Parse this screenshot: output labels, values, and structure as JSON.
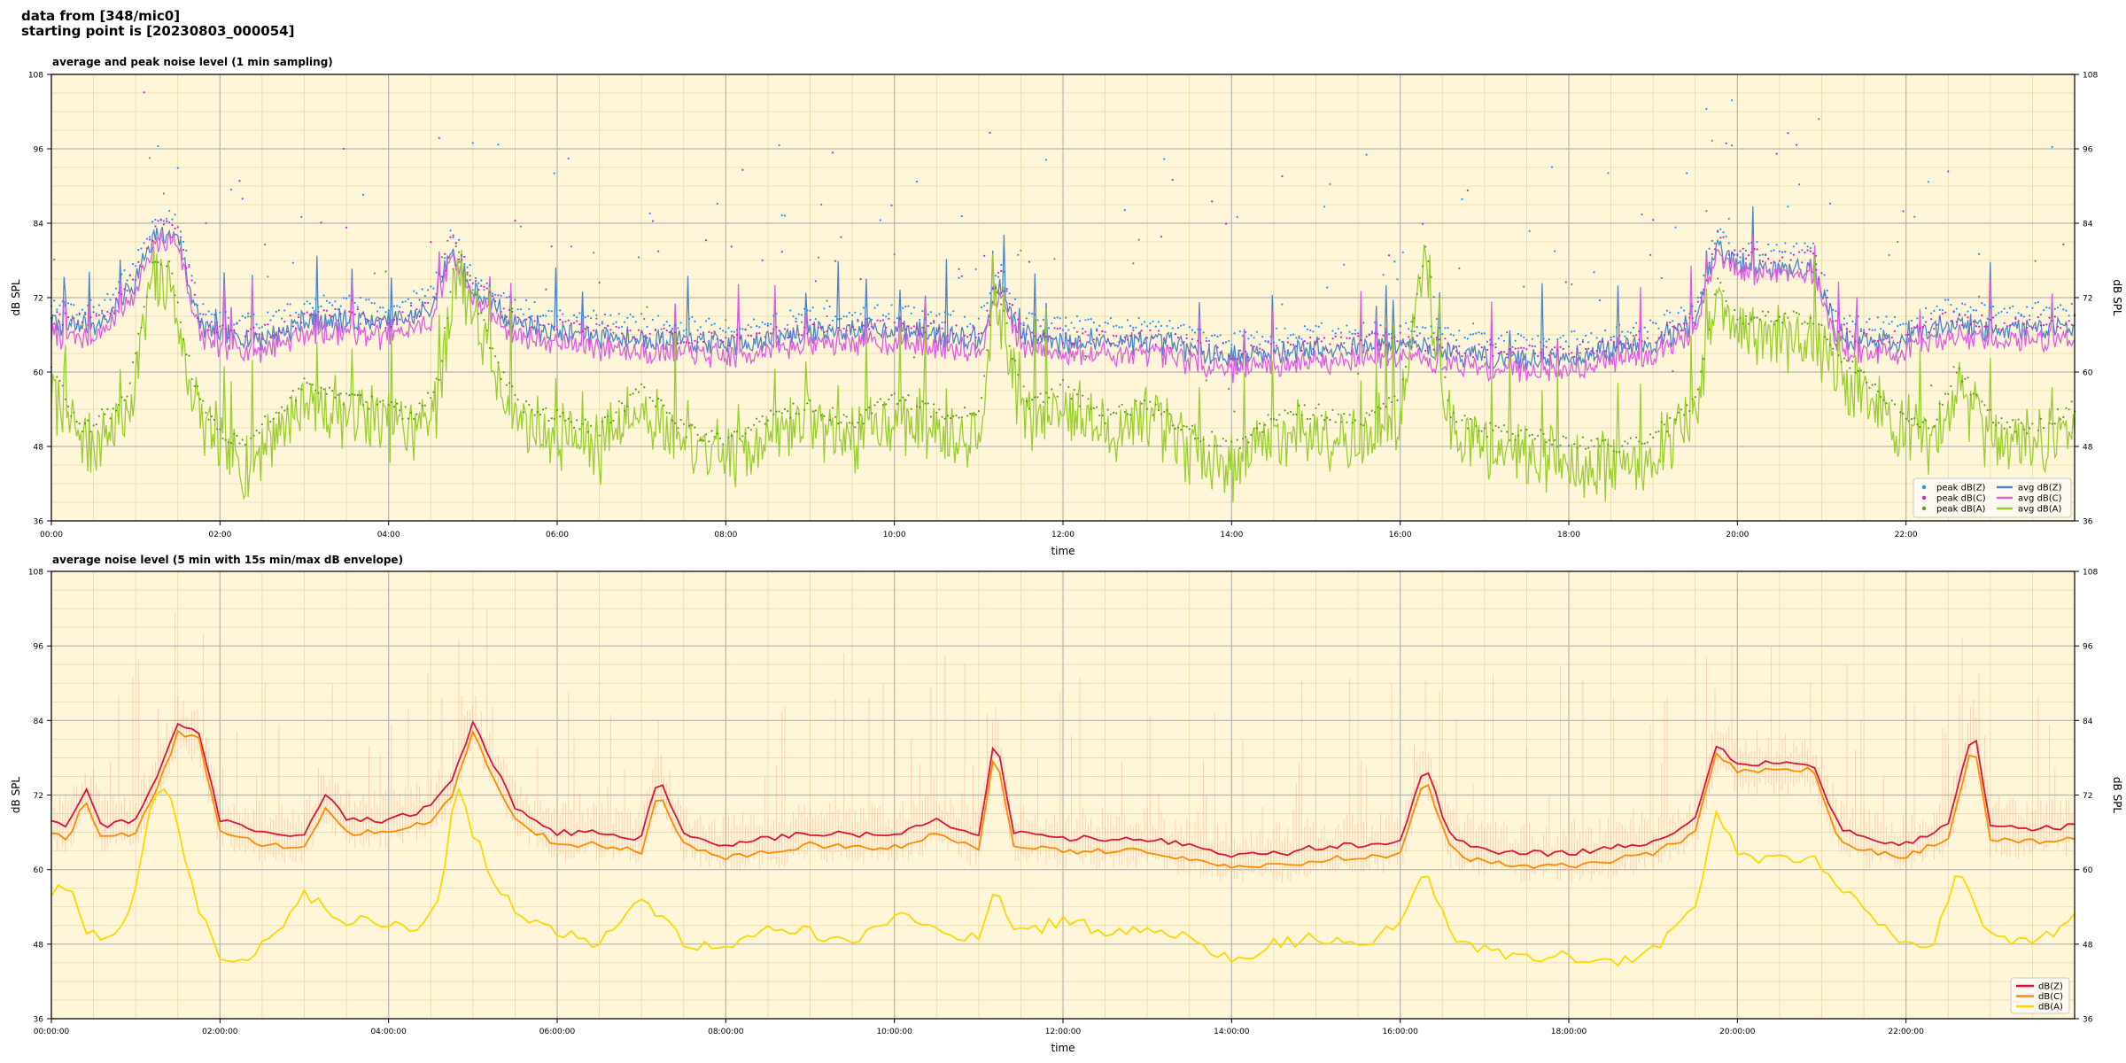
{
  "header": {
    "line1": "data from [348/mic0]",
    "line2": "starting point is [20230803_000054]"
  },
  "colors": {
    "plot_background": "#fff6d9",
    "grid_major": "#b4b4b4",
    "grid_minor": "#e6d9a8",
    "avg_dbz": "#4a85c8",
    "avg_dbc": "#e05ce0",
    "avg_dba": "#9acd32",
    "peak_dbz": "#1e90ff",
    "peak_dbc": "#d020d0",
    "peak_dba": "#5a9c2a",
    "p2_dbz": "#dc143c",
    "p2_dbc": "#ff8c00",
    "p2_dba": "#ffd700",
    "p2_envelope": "#f4a58a"
  },
  "chart_data": [
    {
      "type": "line",
      "title": "average and peak noise level (1 min sampling)",
      "xlabel": "time",
      "ylabel": "dB SPL",
      "ylim": [
        36,
        108
      ],
      "xlim_hours": [
        0,
        24
      ],
      "yticks": [
        "36",
        "48",
        "60",
        "72",
        "84",
        "96",
        "108"
      ],
      "xticks": [
        "00:00",
        "02:00",
        "04:00",
        "06:00",
        "08:00",
        "10:00",
        "12:00",
        "14:00",
        "16:00",
        "18:00",
        "20:00",
        "22:00"
      ],
      "grid": true,
      "legend_position": "lower-right",
      "legend": [
        "peak dB(Z)",
        "peak dB(C)",
        "peak dB(A)",
        "avg dB(Z)",
        "avg dB(C)",
        "avg dB(A)"
      ],
      "series": [
        {
          "name": "avg dB(Z)",
          "x_hours": [
            0,
            0.3,
            0.6,
            1.0,
            1.25,
            1.5,
            1.75,
            2.0,
            2.5,
            3.0,
            3.25,
            3.5,
            4.0,
            4.5,
            4.75,
            5.0,
            5.5,
            6.0,
            7.0,
            8.0,
            9.0,
            10.0,
            11.0,
            11.25,
            11.5,
            12.0,
            13.0,
            14.0,
            14.5,
            15.0,
            16.0,
            17.0,
            18.0,
            19.0,
            19.5,
            19.75,
            20.0,
            20.5,
            20.9,
            21.2,
            21.5,
            22.0,
            22.5,
            23.0,
            24.0
          ],
          "values": [
            68,
            67.5,
            68,
            75,
            82,
            82,
            68,
            66,
            65.5,
            68,
            68.5,
            68.5,
            68,
            70,
            80,
            73,
            68,
            66.5,
            65.5,
            64.5,
            66.5,
            67,
            65.5,
            74,
            66,
            65,
            65,
            62.5,
            63,
            64,
            64.5,
            62.5,
            62.5,
            65,
            68,
            80,
            77,
            77,
            77,
            66,
            65,
            65,
            68,
            67,
            67.5
          ]
        },
        {
          "name": "avg dB(C)",
          "x_hours": [
            0,
            0.3,
            0.6,
            1.0,
            1.25,
            1.5,
            1.75,
            2.0,
            2.5,
            3.0,
            3.25,
            3.5,
            4.0,
            4.5,
            4.75,
            5.0,
            5.5,
            6.0,
            7.0,
            8.0,
            9.0,
            10.0,
            11.0,
            11.25,
            11.5,
            12.0,
            13.0,
            14.0,
            14.5,
            15.0,
            16.0,
            17.0,
            18.0,
            19.0,
            19.5,
            19.75,
            20.0,
            20.5,
            20.9,
            21.2,
            21.5,
            22.0,
            22.5,
            23.0,
            24.0
          ],
          "values": [
            66,
            65.5,
            66,
            73,
            81,
            81,
            66,
            64,
            63.5,
            66,
            66.5,
            66.5,
            65.5,
            68,
            79,
            72,
            66,
            64.5,
            63.5,
            62.5,
            64.5,
            65,
            63.5,
            73,
            64,
            63,
            63,
            60.5,
            61,
            62,
            62.5,
            60.5,
            60.5,
            63,
            66,
            79,
            76,
            76,
            76,
            64,
            63,
            63,
            66,
            65,
            65.5
          ]
        },
        {
          "name": "avg dB(A)",
          "x_hours": [
            0,
            0.2,
            0.4,
            0.6,
            0.9,
            1.2,
            1.4,
            1.6,
            1.8,
            2.0,
            2.3,
            2.6,
            3.0,
            3.5,
            4.0,
            4.3,
            4.6,
            4.8,
            5.0,
            5.3,
            5.6,
            6.0,
            6.5,
            7.0,
            7.5,
            8.0,
            8.5,
            9.0,
            9.5,
            10.0,
            10.5,
            11.0,
            11.2,
            11.4,
            11.6,
            12.0,
            12.5,
            13.0,
            13.5,
            14.0,
            14.5,
            15.0,
            15.5,
            16.0,
            16.3,
            16.6,
            17.0,
            17.5,
            18.0,
            18.5,
            19.0,
            19.5,
            19.75,
            20.0,
            20.5,
            20.9,
            21.2,
            21.5,
            22.0,
            22.3,
            22.6,
            23.0,
            23.5,
            24.0
          ],
          "values": [
            58,
            52,
            48,
            50,
            53,
            74,
            75,
            60,
            52,
            48,
            45,
            50,
            55,
            53,
            52,
            50,
            56,
            78,
            70,
            58,
            52,
            50,
            48,
            55,
            48,
            46,
            50,
            52,
            49,
            53,
            51,
            50,
            72,
            60,
            52,
            55,
            50,
            52,
            48,
            45,
            50,
            51,
            49,
            53,
            78,
            50,
            48,
            47,
            46,
            45,
            47,
            52,
            72,
            66,
            66,
            66,
            60,
            56,
            50,
            48,
            58,
            50,
            48,
            52
          ]
        }
      ]
    },
    {
      "type": "line",
      "title": "average noise level (5 min with 15s min/max dB envelope)",
      "xlabel": "time",
      "ylabel": "dB SPL",
      "ylim": [
        36,
        108
      ],
      "xlim_hours": [
        0,
        24
      ],
      "yticks": [
        "36",
        "48",
        "60",
        "72",
        "84",
        "96",
        "108"
      ],
      "xticks": [
        "00:00:00",
        "02:00:00",
        "04:00:00",
        "06:00:00",
        "08:00:00",
        "10:00:00",
        "12:00:00",
        "14:00:00",
        "16:00:00",
        "18:00:00",
        "20:00:00",
        "22:00:00"
      ],
      "grid": true,
      "legend_position": "lower-right",
      "legend": [
        "dB(Z)",
        "dB(C)",
        "dB(A)"
      ],
      "series": [
        {
          "name": "dB(Z)",
          "x_hours": [
            0,
            0.2,
            0.4,
            0.6,
            1.0,
            1.25,
            1.5,
            1.75,
            2.0,
            2.5,
            3.0,
            3.25,
            3.5,
            4.0,
            4.5,
            4.75,
            5.0,
            5.5,
            6.0,
            6.5,
            7.0,
            7.2,
            7.5,
            8.0,
            9.0,
            10.0,
            10.5,
            11.0,
            11.2,
            11.4,
            12.0,
            13.0,
            14.0,
            14.5,
            15.0,
            15.5,
            16.0,
            16.3,
            16.6,
            17.0,
            18.0,
            19.0,
            19.5,
            19.75,
            20.0,
            20.5,
            20.9,
            21.2,
            21.5,
            22.0,
            22.5,
            22.8,
            23.0,
            23.5,
            24.0
          ],
          "values": [
            68,
            67,
            73,
            67,
            68,
            75,
            83,
            82,
            68,
            66,
            65.5,
            72,
            68,
            68,
            70,
            74,
            84,
            70,
            66,
            66,
            65,
            75,
            66,
            64,
            66,
            65.5,
            68,
            65,
            82,
            66,
            65,
            65,
            62.5,
            62.5,
            63.5,
            64,
            64.5,
            77,
            65,
            63,
            62.5,
            64.5,
            68,
            80,
            77,
            77,
            77,
            67,
            65,
            64,
            67,
            83,
            67,
            66.5,
            67
          ]
        },
        {
          "name": "dB(C)",
          "x_hours": [
            0,
            0.2,
            0.4,
            0.6,
            1.0,
            1.25,
            1.5,
            1.75,
            2.0,
            2.5,
            3.0,
            3.25,
            3.5,
            4.0,
            4.5,
            4.75,
            5.0,
            5.5,
            6.0,
            6.5,
            7.0,
            7.2,
            7.5,
            8.0,
            9.0,
            10.0,
            10.5,
            11.0,
            11.2,
            11.4,
            12.0,
            13.0,
            14.0,
            14.5,
            15.0,
            15.5,
            16.0,
            16.3,
            16.6,
            17.0,
            18.0,
            19.0,
            19.5,
            19.75,
            20.0,
            20.5,
            20.9,
            21.2,
            21.5,
            22.0,
            22.5,
            22.8,
            23.0,
            23.5,
            24.0
          ],
          "values": [
            66,
            65,
            71,
            65,
            66,
            73,
            82,
            81,
            66,
            64,
            63.5,
            70,
            66,
            66,
            68,
            72,
            82,
            68,
            64,
            64,
            63,
            73,
            64,
            62,
            64,
            63.5,
            66,
            63,
            80,
            64,
            63,
            63,
            60.5,
            60.5,
            61.5,
            62,
            62.5,
            75,
            63,
            61,
            60.5,
            62.5,
            66,
            79,
            76,
            76,
            76,
            65,
            63,
            62,
            65,
            81,
            65,
            64.5,
            65
          ]
        },
        {
          "name": "dB(A)",
          "x_hours": [
            0,
            0.2,
            0.4,
            0.6,
            0.9,
            1.2,
            1.4,
            1.6,
            1.8,
            2.0,
            2.3,
            2.6,
            3.0,
            3.5,
            4.0,
            4.3,
            4.6,
            4.8,
            5.0,
            5.3,
            5.6,
            6.0,
            6.5,
            7.0,
            7.5,
            8.0,
            8.5,
            9.0,
            9.5,
            10.0,
            10.5,
            11.0,
            11.2,
            11.4,
            11.6,
            12.0,
            12.5,
            13.0,
            13.5,
            14.0,
            14.5,
            15.0,
            15.5,
            16.0,
            16.3,
            16.6,
            17.0,
            17.5,
            18.0,
            18.5,
            19.0,
            19.5,
            19.75,
            20.0,
            20.5,
            20.9,
            21.2,
            21.5,
            22.0,
            22.3,
            22.6,
            23.0,
            23.5,
            24.0
          ],
          "values": [
            56,
            58,
            50,
            49,
            51,
            72,
            73,
            60,
            52,
            46,
            45,
            49,
            56,
            52,
            51,
            50,
            55,
            74,
            66,
            57,
            52,
            50,
            48,
            56,
            48,
            47,
            51,
            50,
            48,
            53,
            50,
            49,
            57,
            51,
            50,
            52,
            50,
            51,
            49,
            45,
            48,
            49,
            48,
            51,
            60,
            49,
            47,
            46,
            46,
            45,
            47,
            54,
            70,
            62,
            62,
            62,
            57,
            54,
            48,
            47,
            60,
            49,
            48,
            52
          ]
        }
      ]
    }
  ]
}
